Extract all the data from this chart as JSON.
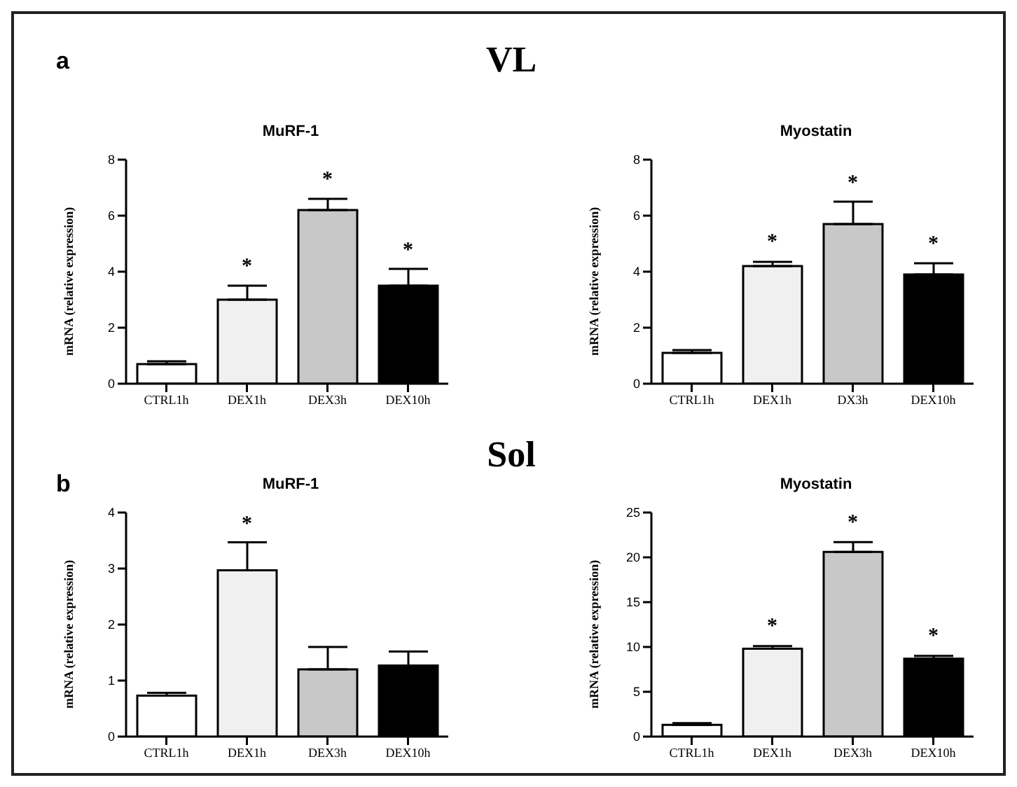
{
  "chart_data": [
    {
      "type": "bar",
      "title": "MuRF-1",
      "ylabel": "mRNA (relative expression)",
      "categories": [
        "CTRL1h",
        "DEX1h",
        "DEX3h",
        "DEX10h"
      ],
      "values": [
        0.7,
        3.0,
        6.2,
        3.5
      ],
      "errors": [
        0.1,
        0.5,
        0.4,
        0.6
      ],
      "colors": [
        "#ffffff",
        "#f0f0f0",
        "#c8c8c8",
        "#000000"
      ],
      "ylim": [
        0,
        8
      ],
      "yticks": [
        0,
        2,
        4,
        6,
        8
      ],
      "annotations": [
        "a",
        "VL",
        {
          "text": "*",
          "x": "DEX1h",
          "y": 3.0
        },
        {
          "text": "*",
          "x": "DEX3h",
          "y": 6.2
        },
        {
          "text": "*",
          "x": "DEX10h",
          "y": 3.5
        }
      ]
    },
    {
      "type": "bar",
      "title": "Myostatin",
      "ylabel": "mRNA (relative expression)",
      "categories": [
        "CTRL1h",
        "DEX1h",
        "DX3h",
        "DEX10h"
      ],
      "values": [
        1.1,
        4.2,
        5.7,
        3.9
      ],
      "errors": [
        0.1,
        0.15,
        0.8,
        0.4
      ],
      "colors": [
        "#ffffff",
        "#f0f0f0",
        "#c8c8c8",
        "#000000"
      ],
      "ylim": [
        0,
        8
      ],
      "yticks": [
        0,
        2,
        4,
        6,
        8
      ],
      "annotations": [
        {
          "text": "*",
          "x": "DEX1h",
          "y": 4.2
        },
        {
          "text": "*",
          "x": "DX3h",
          "y": 5.7
        },
        {
          "text": "*",
          "x": "DEX10h",
          "y": 3.9
        }
      ]
    },
    {
      "type": "bar",
      "title": "MuRF-1",
      "ylabel": "mRNA (relative expression)",
      "categories": [
        "CTRL1h",
        "DEX1h",
        "DEX3h",
        "DEX10h"
      ],
      "values": [
        0.73,
        2.97,
        1.2,
        1.27
      ],
      "errors": [
        0.05,
        0.5,
        0.4,
        0.25
      ],
      "colors": [
        "#ffffff",
        "#f0f0f0",
        "#c8c8c8",
        "#000000"
      ],
      "ylim": [
        0,
        4
      ],
      "yticks": [
        0,
        1,
        2,
        3,
        4
      ],
      "annotations": [
        "b",
        "Sol",
        {
          "text": "*",
          "x": "DEX1h",
          "y": 2.97
        }
      ]
    },
    {
      "type": "bar",
      "title": "Myostatin",
      "ylabel": "mRNA (relative expression)",
      "categories": [
        "CTRL1h",
        "DEX1h",
        "DEX3h",
        "DEX10h"
      ],
      "values": [
        1.3,
        9.8,
        20.6,
        8.7
      ],
      "errors": [
        0.2,
        0.3,
        1.1,
        0.3
      ],
      "colors": [
        "#ffffff",
        "#f0f0f0",
        "#c8c8c8",
        "#000000"
      ],
      "ylim": [
        0,
        25
      ],
      "yticks": [
        0,
        5,
        10,
        15,
        20,
        25
      ],
      "annotations": [
        {
          "text": "*",
          "x": "DEX1h",
          "y": 9.8
        },
        {
          "text": "*",
          "x": "DEX3h",
          "y": 20.6
        },
        {
          "text": "*",
          "x": "DEX10h",
          "y": 8.7
        }
      ]
    }
  ]
}
